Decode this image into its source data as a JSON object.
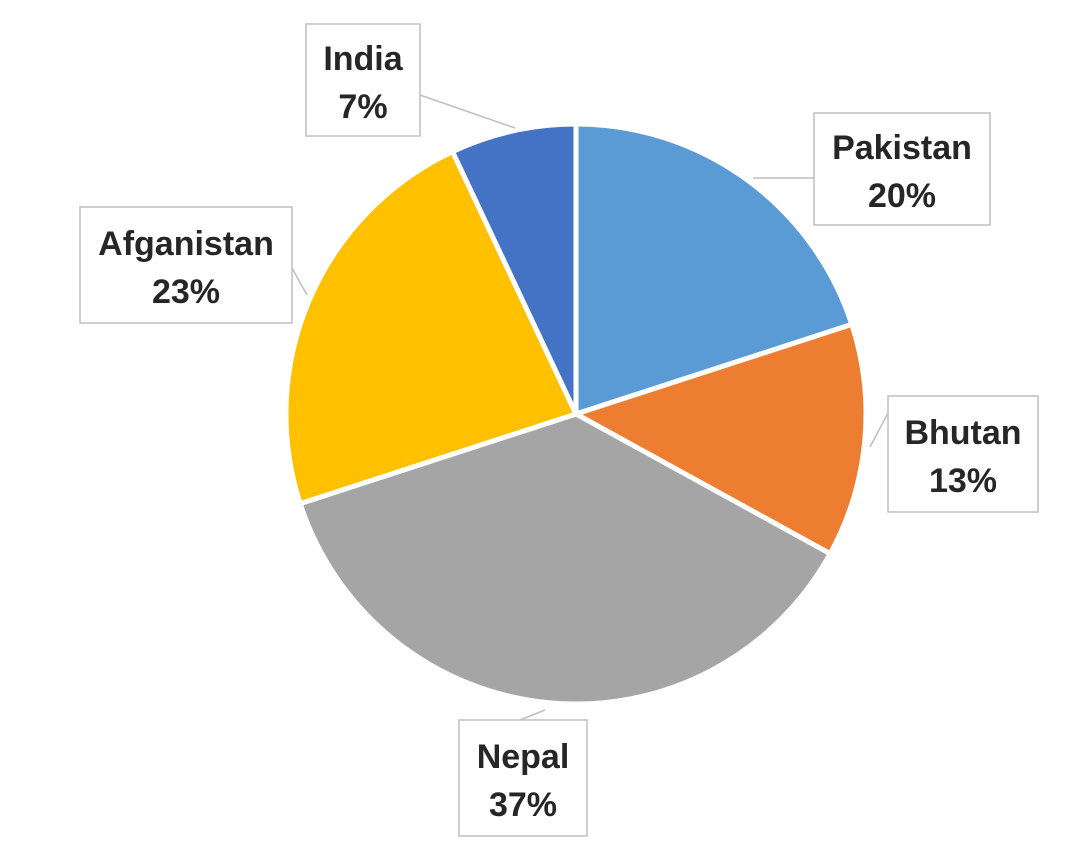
{
  "chart_data": {
    "type": "pie",
    "title": "",
    "slices": [
      {
        "name": "Pakistan",
        "value": 20,
        "label": "20%",
        "color": "#5B9BD5"
      },
      {
        "name": "Bhutan",
        "value": 13,
        "label": "13%",
        "color": "#ED7D31"
      },
      {
        "name": "Nepal",
        "value": 37,
        "label": "37%",
        "color": "#A5A5A5"
      },
      {
        "name": "Afganistan",
        "value": 23,
        "label": "23%",
        "color": "#FFC000"
      },
      {
        "name": "India",
        "value": 7,
        "label": "7%",
        "color": "#4472C4"
      }
    ],
    "legend": "none"
  }
}
